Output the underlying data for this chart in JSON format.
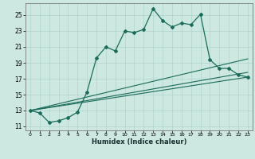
{
  "xlabel": "Humidex (Indice chaleur)",
  "background_color": "#cce8e0",
  "line_color": "#1a6b5a",
  "grid_color": "#b0d4cc",
  "xlim": [
    -0.5,
    23.5
  ],
  "ylim": [
    10.5,
    26.5
  ],
  "xticks": [
    0,
    1,
    2,
    3,
    4,
    5,
    6,
    7,
    8,
    9,
    10,
    11,
    12,
    13,
    14,
    15,
    16,
    17,
    18,
    19,
    20,
    21,
    22,
    23
  ],
  "yticks": [
    11,
    13,
    15,
    17,
    19,
    21,
    23,
    25
  ],
  "main_line": [
    [
      0,
      13.0
    ],
    [
      1,
      12.7
    ],
    [
      2,
      11.5
    ],
    [
      3,
      11.7
    ],
    [
      4,
      12.1
    ],
    [
      5,
      12.8
    ],
    [
      6,
      15.3
    ],
    [
      7,
      19.6
    ],
    [
      8,
      21.0
    ],
    [
      9,
      20.5
    ],
    [
      10,
      23.0
    ],
    [
      11,
      22.8
    ],
    [
      12,
      23.2
    ],
    [
      13,
      25.8
    ],
    [
      14,
      24.3
    ],
    [
      15,
      23.5
    ],
    [
      16,
      24.0
    ],
    [
      17,
      23.8
    ],
    [
      18,
      25.1
    ],
    [
      19,
      19.4
    ],
    [
      20,
      18.3
    ],
    [
      21,
      18.3
    ],
    [
      22,
      17.5
    ],
    [
      23,
      17.2
    ]
  ],
  "line2": [
    [
      0,
      13.0
    ],
    [
      23,
      19.5
    ]
  ],
  "line3": [
    [
      0,
      13.0
    ],
    [
      23,
      17.8
    ]
  ],
  "line4": [
    [
      0,
      13.0
    ],
    [
      23,
      17.2
    ]
  ]
}
